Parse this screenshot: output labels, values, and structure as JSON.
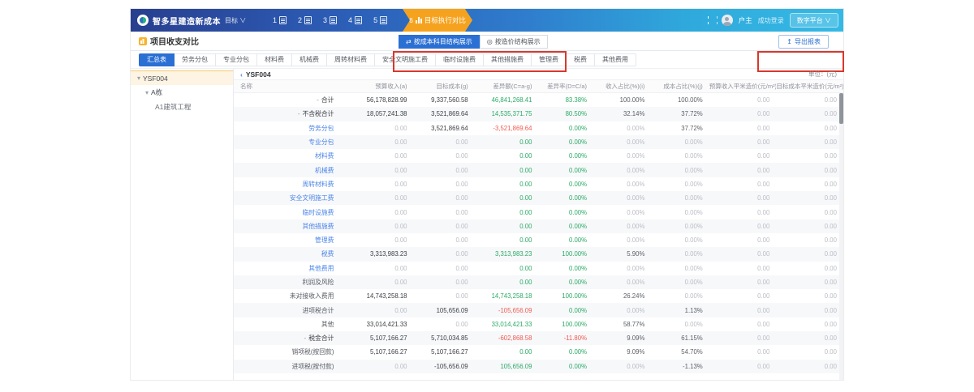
{
  "header": {
    "logo_text": "智多星建造新成本",
    "logo_sub": "目标 ∨",
    "nav_steps": [
      {
        "num": "1"
      },
      {
        "num": "2"
      },
      {
        "num": "3"
      },
      {
        "num": "4"
      },
      {
        "num": "5"
      }
    ],
    "active_step": {
      "num": "6",
      "label": "目标执行对比"
    },
    "user_name": "户主",
    "user_status": "成功登录",
    "platform_button": "数字平台 ∨"
  },
  "toolbar": {
    "page_title": "项目收支对比",
    "view_buttons": [
      {
        "label": "按成本科目结构展示",
        "icon": "⇄",
        "active": true
      },
      {
        "label": "按造价结构展示",
        "icon": "◎",
        "active": false
      }
    ],
    "export_label": "导出报表",
    "export_icon": "↥"
  },
  "tabs": [
    "汇总表",
    "劳务分包",
    "专业分包",
    "材料费",
    "机械费",
    "周转材料费",
    "安全文明施工费",
    "临时设施费",
    "其他措施费",
    "管理费",
    "税费",
    "其他费用"
  ],
  "sidebar": {
    "items": [
      {
        "label": "YSF004",
        "level": 1,
        "caret": "▾",
        "selected": true
      },
      {
        "label": "A栋",
        "level": 2,
        "caret": "▾",
        "selected": false
      },
      {
        "label": "A1建筑工程",
        "level": 3,
        "caret": "",
        "selected": false
      }
    ]
  },
  "table": {
    "back_icon": "‹",
    "breadcrumb": "YSF004",
    "unit_label": "单位：(元)",
    "columns": [
      "名称",
      "预算收入(a)",
      "目标成本(g)",
      "差异额(C=a-g)",
      "差异率(D=C/a)",
      "收入占比(%)(i)",
      "成本占比(%)(j)",
      "预算收入平米造价(元/m²)(b)",
      "目标成本平米造价(元/m²)(h)"
    ],
    "rows": [
      {
        "name": "合计",
        "level": 1,
        "kind": "group",
        "prefix": "-",
        "values": [
          "56,178,828.99",
          "9,337,560.58",
          "46,841,268.41",
          "83.38%",
          "100.00%",
          "100.00%",
          "0.00",
          "0.00"
        ],
        "cc": "green",
        "dc": "green"
      },
      {
        "name": "不含税合计",
        "level": 2,
        "kind": "group",
        "prefix": "-",
        "values": [
          "18,057,241.38",
          "3,521,869.64",
          "14,535,371.75",
          "80.50%",
          "32.14%",
          "37.72%",
          "0.00",
          "0.00"
        ],
        "cc": "green",
        "dc": "green"
      },
      {
        "name": "劳务分包",
        "level": 3,
        "kind": "link",
        "prefix": "",
        "values": [
          "0.00",
          "3,521,869.64",
          "-3,521,869.64",
          "0.00%",
          "0.00%",
          "37.72%",
          "0.00",
          "0.00"
        ],
        "cc": "red",
        "dc": "green"
      },
      {
        "name": "专业分包",
        "level": 3,
        "kind": "link",
        "prefix": "",
        "values": [
          "0.00",
          "0.00",
          "0.00",
          "0.00%",
          "0.00%",
          "0.00%",
          "0.00",
          "0.00"
        ],
        "cc": "green",
        "dc": "green"
      },
      {
        "name": "材料费",
        "level": 3,
        "kind": "link",
        "prefix": "",
        "values": [
          "0.00",
          "0.00",
          "0.00",
          "0.00%",
          "0.00%",
          "0.00%",
          "0.00",
          "0.00"
        ],
        "cc": "green",
        "dc": "green"
      },
      {
        "name": "机械费",
        "level": 3,
        "kind": "link",
        "prefix": "",
        "values": [
          "0.00",
          "0.00",
          "0.00",
          "0.00%",
          "0.00%",
          "0.00%",
          "0.00",
          "0.00"
        ],
        "cc": "green",
        "dc": "green"
      },
      {
        "name": "周转材料费",
        "level": 3,
        "kind": "link",
        "prefix": "",
        "values": [
          "0.00",
          "0.00",
          "0.00",
          "0.00%",
          "0.00%",
          "0.00%",
          "0.00",
          "0.00"
        ],
        "cc": "green",
        "dc": "green"
      },
      {
        "name": "安全文明施工费",
        "level": 3,
        "kind": "link",
        "prefix": "",
        "values": [
          "0.00",
          "0.00",
          "0.00",
          "0.00%",
          "0.00%",
          "0.00%",
          "0.00",
          "0.00"
        ],
        "cc": "green",
        "dc": "green"
      },
      {
        "name": "临时设施费",
        "level": 3,
        "kind": "link",
        "prefix": "",
        "values": [
          "0.00",
          "0.00",
          "0.00",
          "0.00%",
          "0.00%",
          "0.00%",
          "0.00",
          "0.00"
        ],
        "cc": "green",
        "dc": "green"
      },
      {
        "name": "其他措施费",
        "level": 3,
        "kind": "link",
        "prefix": "",
        "values": [
          "0.00",
          "0.00",
          "0.00",
          "0.00%",
          "0.00%",
          "0.00%",
          "0.00",
          "0.00"
        ],
        "cc": "green",
        "dc": "green"
      },
      {
        "name": "管理费",
        "level": 3,
        "kind": "link",
        "prefix": "",
        "values": [
          "0.00",
          "0.00",
          "0.00",
          "0.00%",
          "0.00%",
          "0.00%",
          "0.00",
          "0.00"
        ],
        "cc": "green",
        "dc": "green"
      },
      {
        "name": "税费",
        "level": 3,
        "kind": "link",
        "prefix": "",
        "values": [
          "3,313,983.23",
          "0.00",
          "3,313,983.23",
          "100.00%",
          "5.90%",
          "0.00%",
          "0.00",
          "0.00"
        ],
        "cc": "green",
        "dc": "green"
      },
      {
        "name": "其他费用",
        "level": 3,
        "kind": "link",
        "prefix": "",
        "values": [
          "0.00",
          "0.00",
          "0.00",
          "0.00%",
          "0.00%",
          "0.00%",
          "0.00",
          "0.00"
        ],
        "cc": "green",
        "dc": "green"
      },
      {
        "name": "利润及风险",
        "level": 3,
        "kind": "plain",
        "prefix": "",
        "values": [
          "0.00",
          "0.00",
          "0.00",
          "0.00%",
          "0.00%",
          "0.00%",
          "0.00",
          "0.00"
        ],
        "cc": "green",
        "dc": "green"
      },
      {
        "name": "未对接收入费用",
        "level": 3,
        "kind": "plain",
        "prefix": "",
        "values": [
          "14,743,258.18",
          "0.00",
          "14,743,258.18",
          "100.00%",
          "26.24%",
          "0.00%",
          "0.00",
          "0.00"
        ],
        "cc": "green",
        "dc": "green"
      },
      {
        "name": "进项税合计",
        "level": 3,
        "kind": "plain",
        "prefix": "",
        "values": [
          "0.00",
          "105,656.09",
          "-105,656.09",
          "0.00%",
          "0.00%",
          "1.13%",
          "0.00",
          "0.00"
        ],
        "cc": "red",
        "dc": "green"
      },
      {
        "name": "其他",
        "level": 3,
        "kind": "plain",
        "prefix": "",
        "values": [
          "33,014,421.33",
          "0.00",
          "33,014,421.33",
          "100.00%",
          "58.77%",
          "0.00%",
          "0.00",
          "0.00"
        ],
        "cc": "green",
        "dc": "green"
      },
      {
        "name": "税金合计",
        "level": 2,
        "kind": "group",
        "prefix": "-",
        "values": [
          "5,107,166.27",
          "5,710,034.85",
          "-602,868.58",
          "-11.80%",
          "9.09%",
          "61.15%",
          "0.00",
          "0.00"
        ],
        "cc": "red",
        "dc": "red"
      },
      {
        "name": "销项税(按回款)",
        "level": 3,
        "kind": "plain",
        "prefix": "",
        "values": [
          "5,107,166.27",
          "5,107,166.27",
          "0.00",
          "0.00%",
          "9.09%",
          "54.70%",
          "0.00",
          "0.00"
        ],
        "cc": "green",
        "dc": "green"
      },
      {
        "name": "进项税(按付款)",
        "level": 3,
        "kind": "plain",
        "prefix": "",
        "values": [
          "0.00",
          "-105,656.09",
          "105,656.09",
          "0.00%",
          "0.00%",
          "-1.13%",
          "0.00",
          "0.00"
        ],
        "cc": "green",
        "dc": "green"
      }
    ]
  },
  "colors": {
    "accent_blue": "#2a6fd3",
    "nav_orange": "#f5a31f",
    "green": "#2bab66",
    "red": "#f15b51",
    "link_blue": "#4a84e8",
    "annotation_red": "#d9372b"
  }
}
